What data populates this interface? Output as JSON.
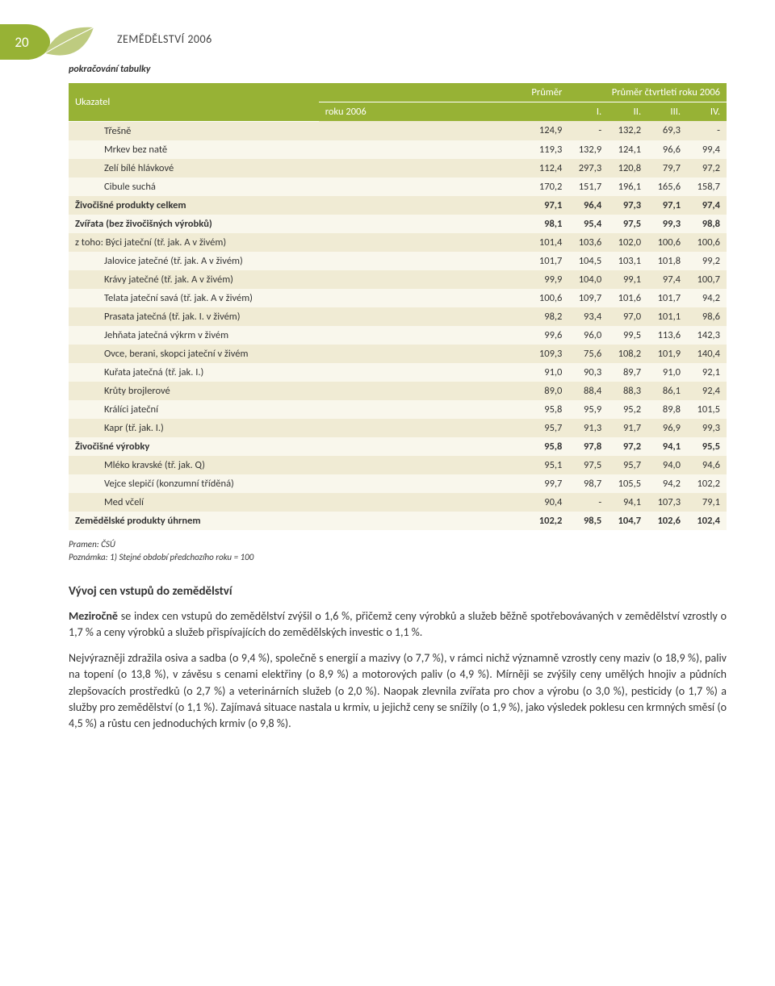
{
  "page": {
    "number": "20",
    "header": "ZEMĚDĚLSTVÍ 2006",
    "continuation": "pokračování tabulky"
  },
  "table": {
    "type": "table",
    "colors": {
      "header_bg": "#97b235",
      "header_text": "#ffffff",
      "row_odd": "#f0ebd4",
      "row_even": "#f9f7ec",
      "text": "#333333"
    },
    "fontsize": 12.5,
    "header": {
      "col1": "Ukazatel",
      "col2_top": "Průměr",
      "col2_bottom": "roku 2006",
      "span_top": "Průměr čtvrtletí roku 2006",
      "q1": "I.",
      "q2": "II.",
      "q3": "III.",
      "q4": "IV."
    },
    "rows": [
      {
        "l": "Třešně",
        "ind": 2,
        "v": [
          "124,9",
          "-",
          "132,2",
          "69,3",
          "-"
        ]
      },
      {
        "l": "Mrkev bez natě",
        "ind": 2,
        "v": [
          "119,3",
          "132,9",
          "124,1",
          "96,6",
          "99,4"
        ]
      },
      {
        "l": "Zelí bílé hlávkové",
        "ind": 2,
        "v": [
          "112,4",
          "297,3",
          "120,8",
          "79,7",
          "97,2"
        ]
      },
      {
        "l": "Cibule suchá",
        "ind": 2,
        "v": [
          "170,2",
          "151,7",
          "196,1",
          "165,6",
          "158,7"
        ]
      },
      {
        "l": "Živočišné produkty celkem",
        "ind": 0,
        "bold": true,
        "v": [
          "97,1",
          "96,4",
          "97,3",
          "97,1",
          "97,4"
        ]
      },
      {
        "l": "Zvířata (bez živočišných výrobků)",
        "ind": 0,
        "bold": true,
        "v": [
          "98,1",
          "95,4",
          "97,5",
          "99,3",
          "98,8"
        ]
      },
      {
        "l": "z toho: Býci jateční (tř. jak. A v živém)",
        "ind": 0,
        "v": [
          "101,4",
          "103,6",
          "102,0",
          "100,6",
          "100,6"
        ]
      },
      {
        "l": "Jalovice jatečné (tř. jak. A v živém)",
        "ind": 2,
        "v": [
          "101,7",
          "104,5",
          "103,1",
          "101,8",
          "99,2"
        ]
      },
      {
        "l": "Krávy jatečné (tř. jak. A v živém)",
        "ind": 2,
        "v": [
          "99,9",
          "104,0",
          "99,1",
          "97,4",
          "100,7"
        ]
      },
      {
        "l": "Telata jateční savá (tř. jak. A v živém)",
        "ind": 2,
        "v": [
          "100,6",
          "109,7",
          "101,6",
          "101,7",
          "94,2"
        ]
      },
      {
        "l": "Prasata jatečná (tř. jak. I. v živém)",
        "ind": 2,
        "v": [
          "98,2",
          "93,4",
          "97,0",
          "101,1",
          "98,6"
        ]
      },
      {
        "l": "Jehňata jatečná výkrm v živém",
        "ind": 2,
        "v": [
          "99,6",
          "96,0",
          "99,5",
          "113,6",
          "142,3"
        ]
      },
      {
        "l": "Ovce, berani, skopci jateční v živém",
        "ind": 2,
        "v": [
          "109,3",
          "75,6",
          "108,2",
          "101,9",
          "140,4"
        ]
      },
      {
        "l": "Kuřata jatečná (tř. jak. I.)",
        "ind": 2,
        "v": [
          "91,0",
          "90,3",
          "89,7",
          "91,0",
          "92,1"
        ]
      },
      {
        "l": "Krůty brojlerové",
        "ind": 2,
        "v": [
          "89,0",
          "88,4",
          "88,3",
          "86,1",
          "92,4"
        ]
      },
      {
        "l": "Králíci jateční",
        "ind": 2,
        "v": [
          "95,8",
          "95,9",
          "95,2",
          "89,8",
          "101,5"
        ]
      },
      {
        "l": "Kapr (tř. jak. I.)",
        "ind": 2,
        "v": [
          "95,7",
          "91,3",
          "91,7",
          "96,9",
          "99,3"
        ]
      },
      {
        "l": "Živočišné výrobky",
        "ind": 0,
        "bold": true,
        "v": [
          "95,8",
          "97,8",
          "97,2",
          "94,1",
          "95,5"
        ]
      },
      {
        "l": "Mléko kravské (tř. jak. Q)",
        "ind": 2,
        "v": [
          "95,1",
          "97,5",
          "95,7",
          "94,0",
          "94,6"
        ]
      },
      {
        "l": "Vejce slepičí (konzumní tříděná)",
        "ind": 2,
        "v": [
          "99,7",
          "98,7",
          "105,5",
          "94,2",
          "102,2"
        ]
      },
      {
        "l": "Med včelí",
        "ind": 2,
        "v": [
          "90,4",
          "-",
          "94,1",
          "107,3",
          "79,1"
        ]
      },
      {
        "l": "Zemědělské produkty úhrnem",
        "ind": 0,
        "bold": true,
        "v": [
          "102,2",
          "98,5",
          "104,7",
          "102,6",
          "102,4"
        ]
      }
    ]
  },
  "notes": {
    "source": "Pramen: ČSÚ",
    "note1": "Poznámka: 1) Stejné období předchozího roku = 100"
  },
  "section": {
    "title": "Vývoj cen vstupů do zemědělství",
    "p1_lead": "Meziročně",
    "p1_rest": " se index cen vstupů do zemědělství zvýšil o 1,6 %, přičemž ceny výrobků a služeb běžně spotřebovávaných v zemědělství vzrostly o 1,7 % a ceny výrobků a služeb přispívajících do zemědělských investic o 1,1 %.",
    "p2": "Nejvýrazněji zdražila osiva a sadba (o 9,4 %), společně s energií a mazivy (o 7,7 %), v rámci nichž významně vzrostly ceny maziv (o 18,9 %), paliv na topení (o 13,8 %), v závěsu s cenami elektřiny (o 8,9 %) a motorových paliv (o 4,9 %). Mírněji se zvýšily ceny umělých hnojiv a půdních zlepšovacích prostředků (o 2,7 %) a veterinárních služeb (o 2,0 %). Naopak zlevnila zvířata pro chov a výrobu (o 3,0 %), pesticidy (o 1,7 %) a služby pro zemědělství (o 1,1 %). Zajímavá situace nastala u krmiv, u jejichž ceny se snížily (o 1,9 %), jako výsledek poklesu cen krmných směsí (o 4,5 %) a růstu cen jednoduchých krmiv (o 9,8 %)."
  }
}
